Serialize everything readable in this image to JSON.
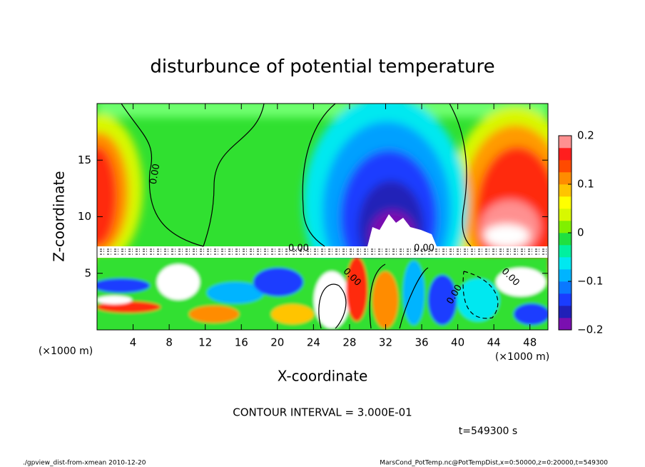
{
  "chart_data": {
    "type": "contour",
    "title": "disturbunce of potential temperature",
    "x_label": "X-coordinate",
    "y_label": "Z-coordinate",
    "x_unit_label": "(×1000 m)",
    "xlim": [
      0,
      50
    ],
    "xticks": [
      4,
      8,
      12,
      16,
      20,
      24,
      28,
      32,
      36,
      40,
      44,
      48
    ],
    "ylim": [
      0,
      20
    ],
    "yticks": [
      5,
      10,
      15
    ],
    "contour_labels": [
      "0.00",
      "0.00",
      "0.00",
      "0.00",
      "0.00",
      "0.00"
    ],
    "colorbar": {
      "lim": [
        -0.2,
        0.2
      ],
      "ticks": [
        -0.2,
        -0.1,
        0,
        0.1,
        0.2
      ],
      "tick_labels_text": [
        "−0.2",
        "−0.1",
        "0",
        "0.1",
        "0.2"
      ],
      "colors": [
        "#7a0fb0",
        "#2020b8",
        "#1a3cff",
        "#0a78ff",
        "#00b4ff",
        "#00e8f0",
        "#00f0a0",
        "#20e040",
        "#80f000",
        "#d8f800",
        "#ffff00",
        "#ffc400",
        "#ff8c00",
        "#ff4a00",
        "#ff1e1e",
        "#ff9090"
      ]
    },
    "contour_interval_text": "CONTOUR INTERVAL = 3.000E-01",
    "time_text": "t=549300 s",
    "footer_left": "./gpview_dist-from-xmean  2010-12-20",
    "footer_right": "MarsCond_PotTemp.nc@PotTempDist,x=0:50000,z=0:20000,t=549300"
  }
}
